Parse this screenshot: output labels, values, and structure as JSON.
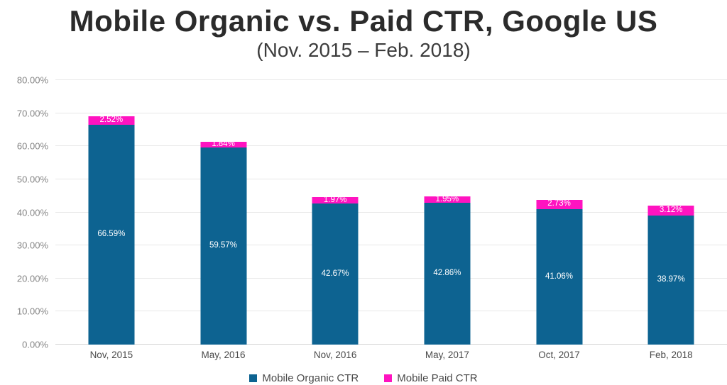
{
  "header": {
    "title": "Mobile Organic vs. Paid CTR, Google US",
    "subtitle": "(Nov. 2015 – Feb. 2018)"
  },
  "colors": {
    "organic": "#0d6391",
    "paid": "#ff13c0",
    "title_text": "#2b2b2b",
    "axis_text": "#858585",
    "category_text": "#4a4a4a",
    "gridline": "#e8e8e8",
    "data_label_text": "#ffffff",
    "background": "#ffffff"
  },
  "chart_data": {
    "type": "bar",
    "stacked": true,
    "title": "Mobile Organic vs. Paid CTR, Google US",
    "subtitle": "(Nov. 2015 – Feb. 2018)",
    "categories": [
      "Nov, 2015",
      "May, 2016",
      "Nov, 2016",
      "May, 2017",
      "Oct, 2017",
      "Feb, 2018"
    ],
    "series": [
      {
        "name": "Mobile Organic CTR",
        "color": "#0d6391",
        "values": [
          66.59,
          59.57,
          42.67,
          42.86,
          41.06,
          38.97
        ],
        "labels": [
          "66.59%",
          "59.57%",
          "42.67%",
          "42.86%",
          "41.06%",
          "38.97%"
        ]
      },
      {
        "name": "Mobile Paid CTR",
        "color": "#ff13c0",
        "values": [
          2.52,
          1.84,
          1.97,
          1.95,
          2.73,
          3.12
        ],
        "labels": [
          "2.52%",
          "1.84%",
          "1.97%",
          "1.95%",
          "2.73%",
          "3.12%"
        ]
      }
    ],
    "xlabel": "",
    "ylabel": "",
    "ylim": [
      0,
      80
    ],
    "y_axis": {
      "min": 0,
      "max": 80,
      "step": 10,
      "tick_labels": [
        "0.00%",
        "10.00%",
        "20.00%",
        "30.00%",
        "40.00%",
        "50.00%",
        "60.00%",
        "70.00%",
        "80.00%"
      ]
    },
    "grid": "horizontal",
    "legend_position": "bottom"
  }
}
